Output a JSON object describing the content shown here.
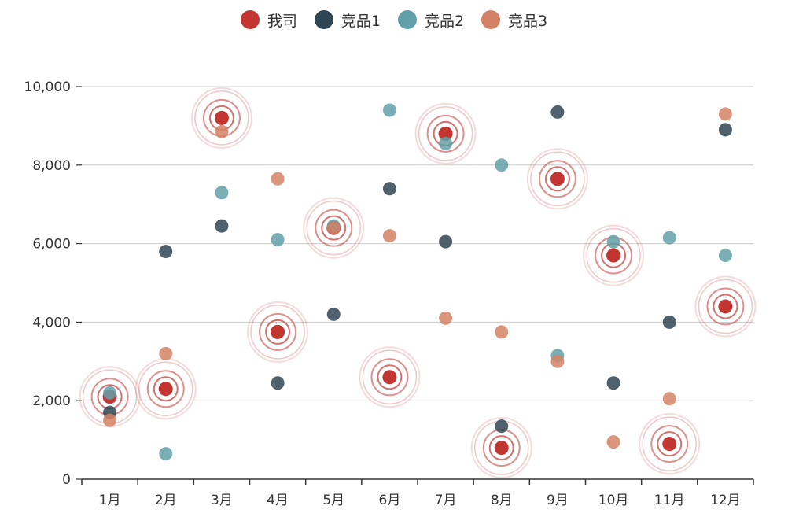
{
  "chart_data": {
    "type": "scatter",
    "categories": [
      "1月",
      "2月",
      "3月",
      "4月",
      "5月",
      "6月",
      "7月",
      "8月",
      "9月",
      "10月",
      "11月",
      "12月"
    ],
    "ylim": [
      0,
      10000
    ],
    "yticks": [
      0,
      2000,
      4000,
      6000,
      8000,
      10000
    ],
    "ytick_labels": [
      "0",
      "2,000",
      "4,000",
      "6,000",
      "8,000",
      "10,000"
    ],
    "grid": true,
    "legend_position": "top-center",
    "series": [
      {
        "name": "我司",
        "color": "#c23531",
        "effect": "ripple",
        "values": [
          2100,
          2300,
          9200,
          3750,
          6400,
          2600,
          8800,
          800,
          7650,
          5700,
          900,
          4400
        ]
      },
      {
        "name": "竞品1",
        "color": "#2f4554",
        "values": [
          1700,
          5800,
          6450,
          2450,
          4200,
          7400,
          6050,
          1350,
          9350,
          2450,
          4000,
          8900
        ]
      },
      {
        "name": "竞品2",
        "color": "#61a0a8",
        "values": [
          2200,
          650,
          7300,
          6100,
          6450,
          9400,
          8550,
          8000,
          3150,
          6050,
          6150,
          5700
        ]
      },
      {
        "name": "竞品3",
        "color": "#d48265",
        "values": [
          1500,
          3200,
          8850,
          7650,
          6400,
          6200,
          4100,
          3750,
          3000,
          950,
          2050,
          9300
        ]
      }
    ]
  }
}
